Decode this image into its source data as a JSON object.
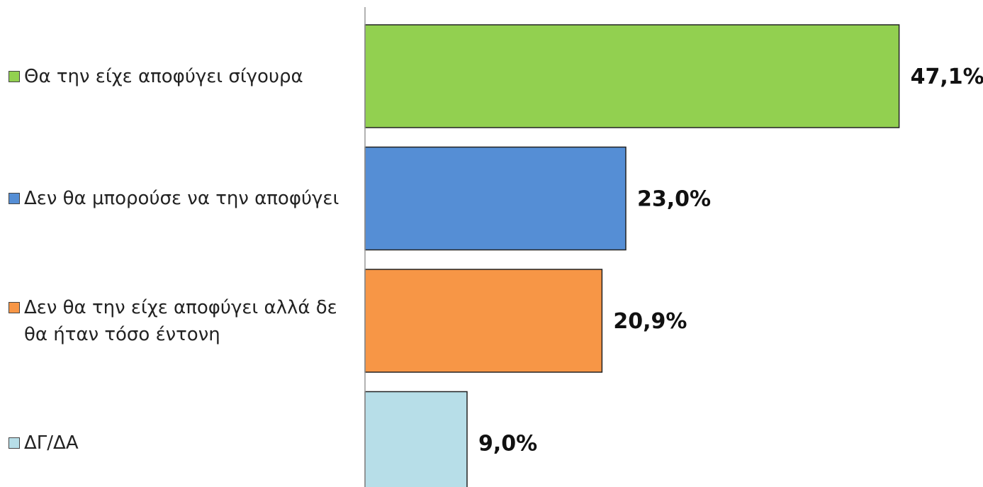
{
  "chart_data": {
    "type": "bar",
    "orientation": "horizontal",
    "xlim": [
      0,
      50
    ],
    "series": [
      {
        "name": "Θα την είχε αποφύγει σίγουρα",
        "color": "#92d050",
        "values": [
          47.1
        ],
        "value_labels": [
          "47,1%"
        ]
      },
      {
        "name": "Δεν θα μπορούσε να την αποφύγει",
        "color": "#558ed5",
        "values": [
          23.0
        ],
        "value_labels": [
          "23,0%"
        ]
      },
      {
        "name": "Δεν θα την είχε αποφύγει αλλά δε θα ήταν τόσο έντονη",
        "color": "#f79646",
        "values": [
          20.9
        ],
        "value_labels": [
          "20,9%"
        ]
      },
      {
        "name": "ΔΓ/ΔΑ",
        "color": "#b7dee8",
        "values": [
          9.0
        ],
        "value_labels": [
          "9,0%"
        ]
      }
    ]
  }
}
